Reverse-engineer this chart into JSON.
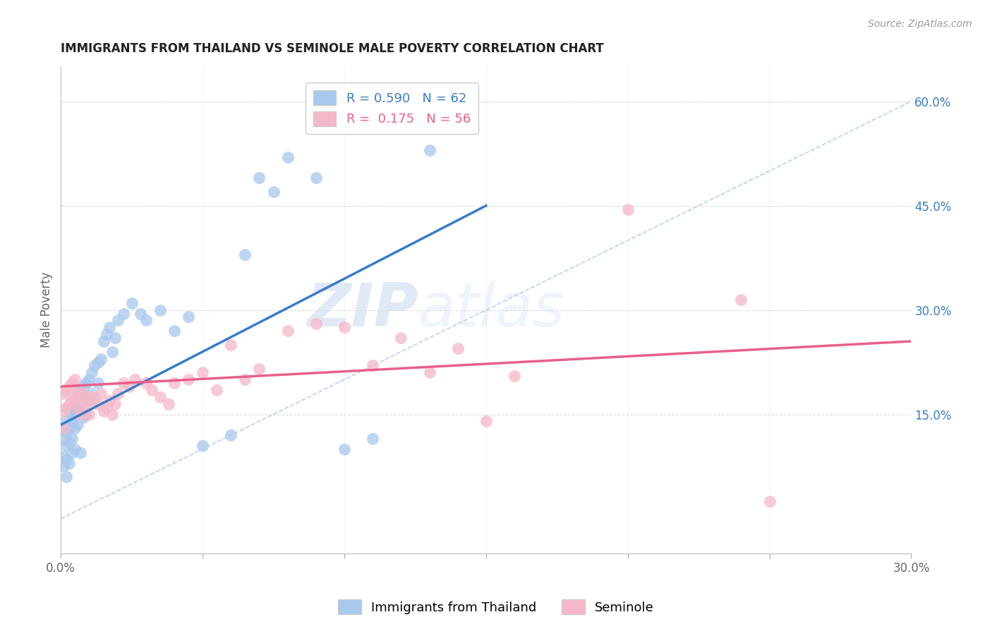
{
  "title": "IMMIGRANTS FROM THAILAND VS SEMINOLE MALE POVERTY CORRELATION CHART",
  "source": "Source: ZipAtlas.com",
  "ylabel_left": "Male Poverty",
  "legend_label1": "Immigrants from Thailand",
  "legend_label2": "Seminole",
  "R1": 0.59,
  "N1": 62,
  "R2": 0.175,
  "N2": 56,
  "color_blue": "#A8C8EE",
  "color_pink": "#F5B8C8",
  "color_line_blue": "#3A7CC8",
  "color_line_pink": "#E8608A",
  "color_ref_line": "#B8D0F0",
  "x_min": 0.0,
  "x_max": 0.3,
  "y_min": -0.05,
  "y_max": 0.65,
  "right_yticks": [
    0.15,
    0.3,
    0.45,
    0.6
  ],
  "right_yticklabels": [
    "15.0%",
    "30.0%",
    "45.0%",
    "60.0%"
  ],
  "watermark_zip": "ZIP",
  "watermark_atlas": "atlas",
  "blue_scatter_x": [
    0.001,
    0.001,
    0.001,
    0.001,
    0.002,
    0.002,
    0.002,
    0.002,
    0.002,
    0.003,
    0.003,
    0.003,
    0.003,
    0.004,
    0.004,
    0.004,
    0.004,
    0.005,
    0.005,
    0.005,
    0.005,
    0.006,
    0.006,
    0.006,
    0.007,
    0.007,
    0.007,
    0.008,
    0.008,
    0.009,
    0.009,
    0.01,
    0.01,
    0.011,
    0.011,
    0.012,
    0.013,
    0.013,
    0.014,
    0.015,
    0.016,
    0.017,
    0.018,
    0.019,
    0.02,
    0.022,
    0.025,
    0.028,
    0.03,
    0.035,
    0.04,
    0.045,
    0.05,
    0.06,
    0.065,
    0.07,
    0.075,
    0.08,
    0.09,
    0.1,
    0.11,
    0.13
  ],
  "blue_scatter_y": [
    0.115,
    0.13,
    0.09,
    0.075,
    0.14,
    0.125,
    0.105,
    0.085,
    0.06,
    0.155,
    0.13,
    0.11,
    0.08,
    0.16,
    0.14,
    0.115,
    0.095,
    0.17,
    0.15,
    0.13,
    0.1,
    0.175,
    0.155,
    0.135,
    0.185,
    0.165,
    0.095,
    0.19,
    0.145,
    0.195,
    0.15,
    0.2,
    0.17,
    0.21,
    0.18,
    0.22,
    0.225,
    0.195,
    0.23,
    0.255,
    0.265,
    0.275,
    0.24,
    0.26,
    0.285,
    0.295,
    0.31,
    0.295,
    0.285,
    0.3,
    0.27,
    0.29,
    0.105,
    0.12,
    0.38,
    0.49,
    0.47,
    0.52,
    0.49,
    0.1,
    0.115,
    0.53
  ],
  "pink_scatter_x": [
    0.001,
    0.001,
    0.001,
    0.002,
    0.002,
    0.003,
    0.003,
    0.004,
    0.004,
    0.005,
    0.005,
    0.006,
    0.006,
    0.007,
    0.007,
    0.008,
    0.008,
    0.009,
    0.01,
    0.01,
    0.011,
    0.012,
    0.013,
    0.014,
    0.015,
    0.016,
    0.017,
    0.018,
    0.019,
    0.02,
    0.022,
    0.024,
    0.026,
    0.03,
    0.032,
    0.035,
    0.038,
    0.04,
    0.045,
    0.05,
    0.055,
    0.06,
    0.065,
    0.07,
    0.08,
    0.09,
    0.1,
    0.11,
    0.12,
    0.13,
    0.14,
    0.16,
    0.2,
    0.24,
    0.15,
    0.25
  ],
  "pink_scatter_y": [
    0.18,
    0.155,
    0.13,
    0.185,
    0.16,
    0.19,
    0.165,
    0.195,
    0.17,
    0.2,
    0.175,
    0.185,
    0.16,
    0.175,
    0.15,
    0.18,
    0.155,
    0.165,
    0.175,
    0.15,
    0.17,
    0.175,
    0.165,
    0.18,
    0.155,
    0.16,
    0.17,
    0.15,
    0.165,
    0.18,
    0.195,
    0.19,
    0.2,
    0.195,
    0.185,
    0.175,
    0.165,
    0.195,
    0.2,
    0.21,
    0.185,
    0.25,
    0.2,
    0.215,
    0.27,
    0.28,
    0.275,
    0.22,
    0.26,
    0.21,
    0.245,
    0.205,
    0.445,
    0.315,
    0.14,
    0.025
  ]
}
